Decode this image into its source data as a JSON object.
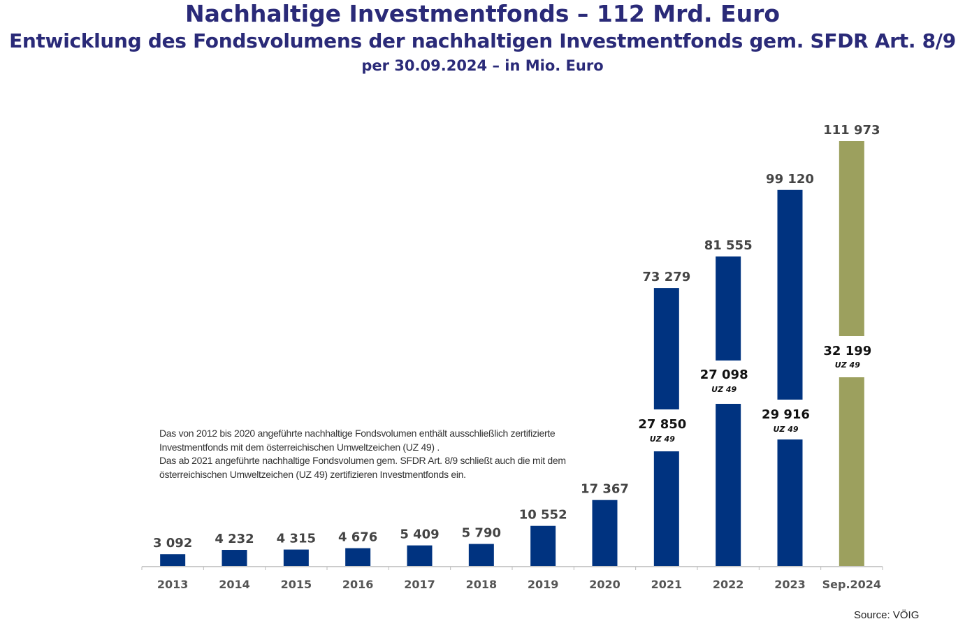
{
  "chart_data": {
    "type": "bar",
    "title": "Nachhaltige Investmentfonds – 112 Mrd. Euro",
    "subtitle": "Entwicklung des Fondsvolumens der nachhaltigen Investmentfonds gem. SFDR Art. 8/9",
    "subtitle2": "per 30.09.2024 – in Mio. Euro",
    "categories": [
      "2013",
      "2014",
      "2015",
      "2016",
      "2017",
      "2018",
      "2019",
      "2020",
      "2021",
      "2022",
      "2023",
      "Sep.2024"
    ],
    "values": [
      3092,
      4232,
      4315,
      4676,
      5409,
      5790,
      10552,
      17367,
      73279,
      81555,
      99120,
      111973
    ],
    "value_labels": [
      "3 092",
      "4 232",
      "4 315",
      "4 676",
      "5 409",
      "5 790",
      "10 552",
      "17 367",
      "73 279",
      "81 555",
      "99 120",
      "111 973"
    ],
    "uz49": {
      "categories": [
        "2021",
        "2022",
        "2023",
        "Sep.2024"
      ],
      "values": [
        27850,
        27098,
        29916,
        32199
      ],
      "value_labels": [
        "27 850",
        "27 098",
        "29 916",
        "32 199"
      ],
      "tag": "UZ 49"
    },
    "bar_colors": {
      "default": "#003380",
      "Sep.2024": "#9ca05e"
    },
    "ylim": [
      0,
      111973
    ],
    "grid": false,
    "xlabel": "",
    "ylabel": "",
    "notes": [
      "Das von 2012 bis 2020 angeführte nachhaltige Fondsvolumen enthält ausschließlich zertifizierte",
      "Investmentfonds mit dem österreichischen Umweltzeichen (UZ 49) .",
      "Das ab 2021 angeführte nachhaltige Fondsvolumen gem. SFDR Art. 8/9 schließt auch die mit dem",
      "österreichischen Umweltzeichen (UZ 49) zertifizieren Investmentfonds ein."
    ],
    "source": "Source: VÖIG"
  }
}
